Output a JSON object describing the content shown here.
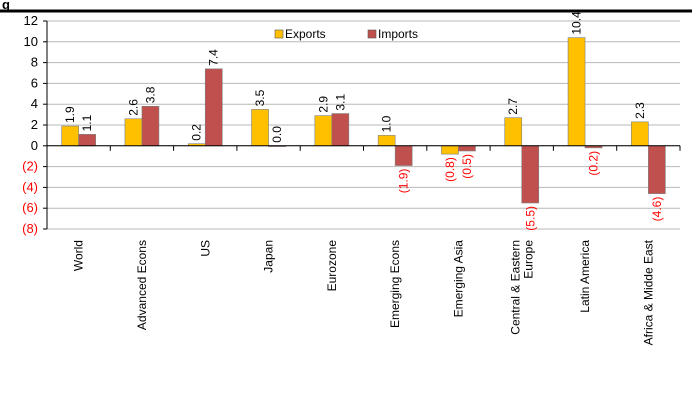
{
  "chart_data": {
    "type": "bar",
    "title_fragment": "g",
    "categories": [
      "World",
      "Advanced Econs",
      "US",
      "Japan",
      "Eurozone",
      "Emerging Econs",
      "Emerging Asia",
      "Central & Eastern Europe",
      "Latin America",
      "Africa & Midde East"
    ],
    "series": [
      {
        "name": "Exports",
        "color": "#FFC000",
        "values": [
          1.9,
          2.6,
          0.2,
          3.5,
          2.9,
          1.0,
          -0.8,
          2.7,
          10.4,
          2.3
        ],
        "labels": [
          "1.9",
          "2.6",
          "0.2",
          "3.5",
          "2.9",
          "1.0",
          "(0.8)",
          "2.7",
          "10.4",
          "2.3"
        ]
      },
      {
        "name": "Imports",
        "color": "#C0504D",
        "values": [
          1.1,
          3.8,
          7.4,
          0.0,
          3.1,
          -1.9,
          -0.5,
          -5.5,
          -0.2,
          -4.6
        ],
        "labels": [
          "1.1",
          "3.8",
          "7.4",
          "0.0",
          "3.1",
          "(1.9)",
          "(0.5)",
          "(5.5)",
          "(0.2)",
          "(4.6)"
        ]
      }
    ],
    "ylim": [
      -8,
      12
    ],
    "yticks": [
      12,
      10,
      8,
      6,
      4,
      2,
      0,
      -2,
      -4,
      -6,
      -8
    ],
    "ytick_labels": [
      "12",
      "10",
      "8",
      "6",
      "4",
      "2",
      "0",
      "(2)",
      "(4)",
      "(6)",
      "(8)"
    ],
    "negative_label_color": "#FF0000",
    "grid": true,
    "legend_position": "top-center"
  }
}
